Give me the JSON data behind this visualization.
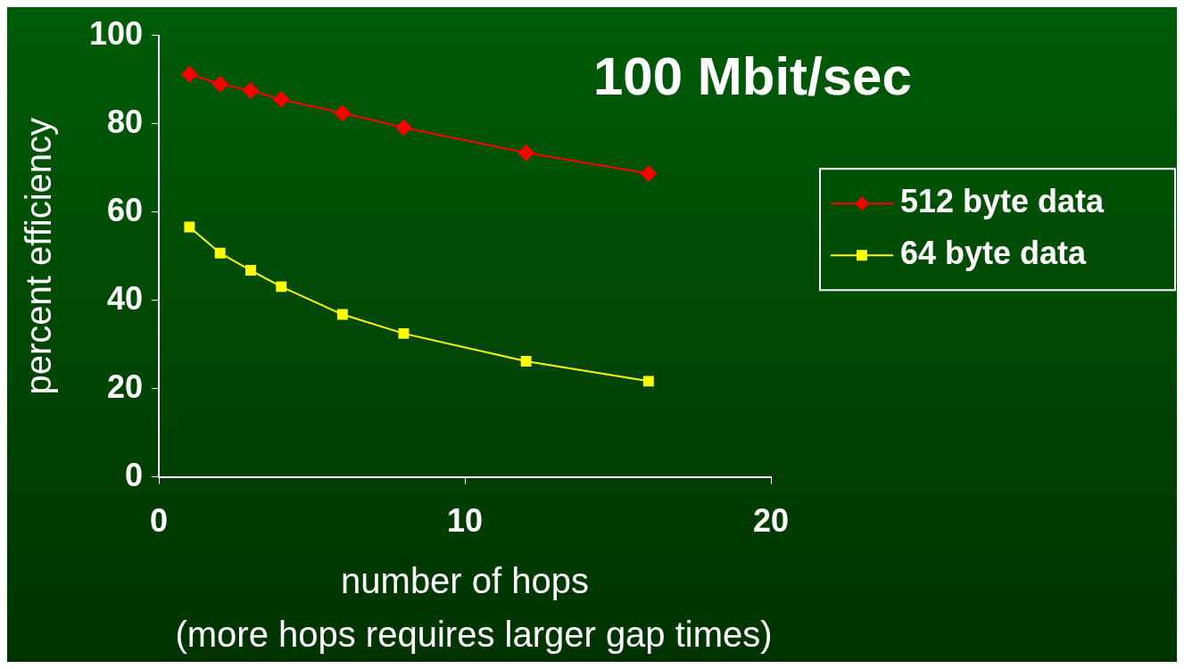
{
  "chart_data": {
    "type": "line",
    "title": "100 Mbit/sec",
    "xlabel": "number of hops",
    "ylabel": "percent efficiency",
    "annotations": [
      "(more hops requires larger gap times)"
    ],
    "x": [
      1,
      2,
      3,
      4,
      6,
      8,
      12,
      16
    ],
    "series": [
      {
        "name": "512 byte data",
        "color": "#ff0000",
        "marker": "diamond",
        "values": [
          91.2,
          89.0,
          87.5,
          85.5,
          82.4,
          79.1,
          73.4,
          68.7
        ]
      },
      {
        "name": "64 byte data",
        "color": "#ffff00",
        "marker": "square",
        "values": [
          56.6,
          50.7,
          46.8,
          43.1,
          36.8,
          32.5,
          26.2,
          21.7
        ]
      }
    ],
    "xlim": [
      0,
      20
    ],
    "xticks": [
      0,
      10,
      20
    ],
    "ylim": [
      0,
      100
    ],
    "yticks": [
      0,
      20,
      40,
      60,
      80,
      100
    ],
    "grid": false,
    "legend": "right",
    "line_style": "solid"
  }
}
